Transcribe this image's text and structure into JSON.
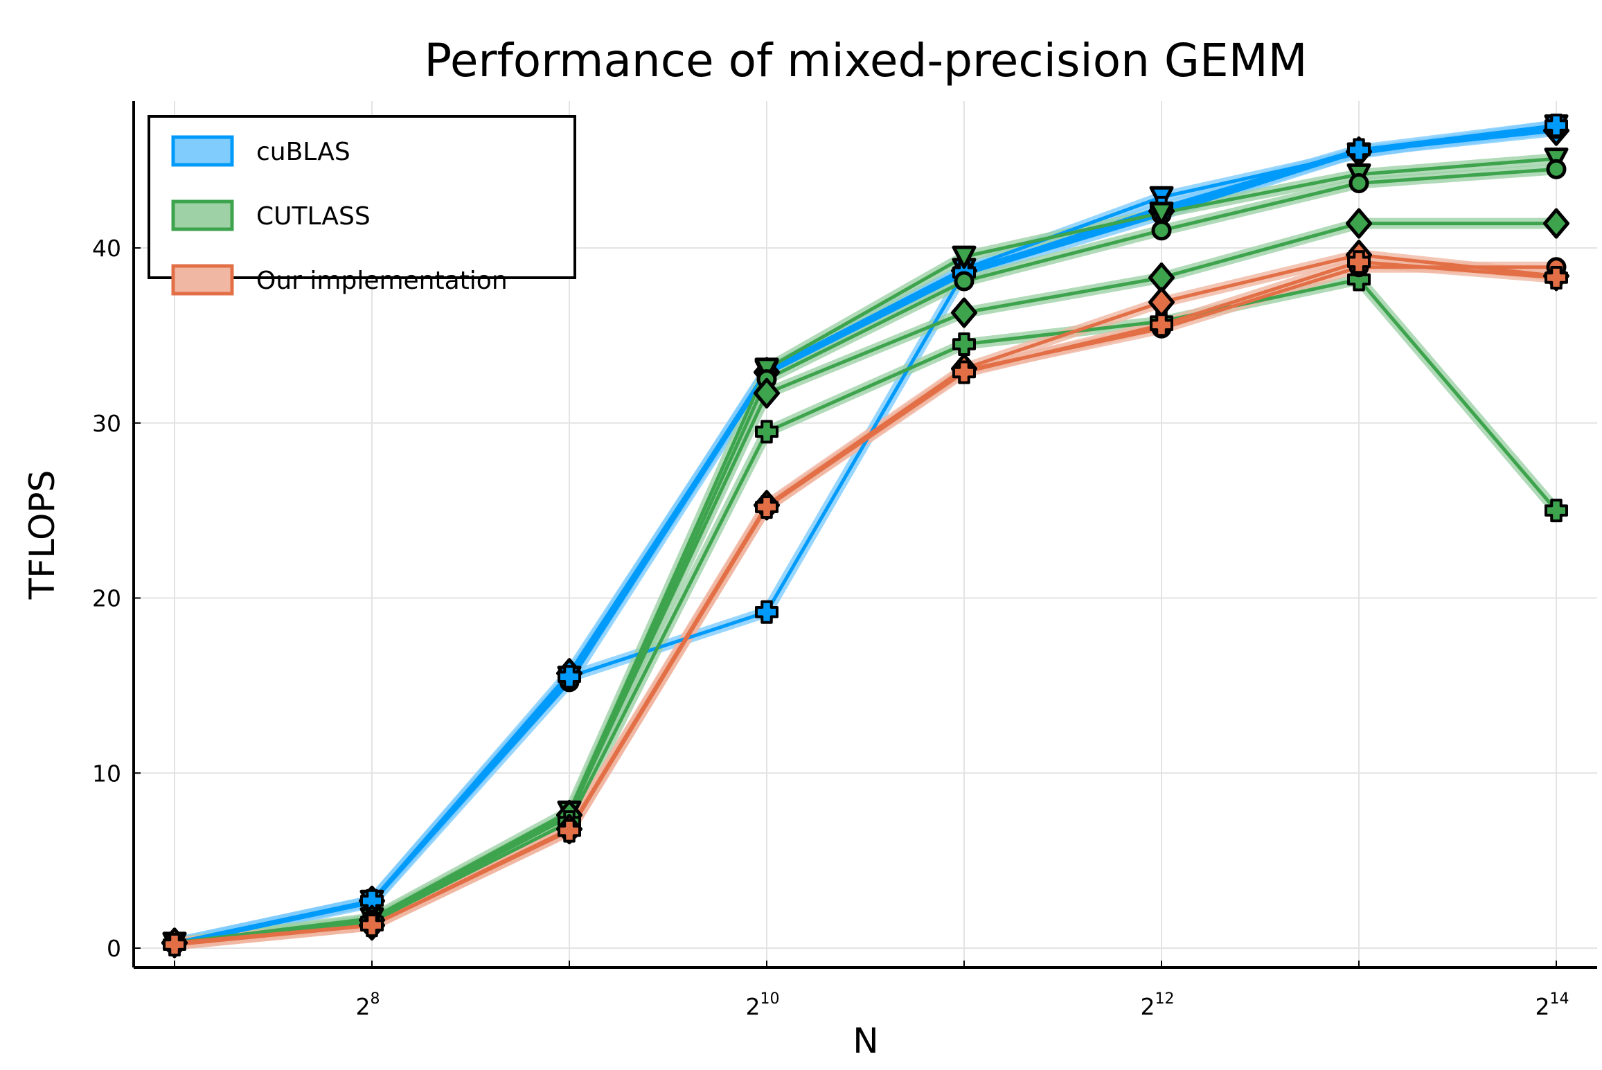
{
  "chart_data": {
    "type": "line",
    "title": "Performance of mixed-precision GEMM",
    "xlabel": "N",
    "ylabel": "TFLOPS",
    "x_scale": "log2",
    "x": [
      128,
      256,
      512,
      1024,
      2048,
      4096,
      8192,
      16384
    ],
    "x_ticks": [
      {
        "base": "2",
        "exp": "8",
        "value": 256
      },
      {
        "base": "2",
        "exp": "10",
        "value": 1024
      },
      {
        "base": "2",
        "exp": "12",
        "value": 4096
      },
      {
        "base": "2",
        "exp": "14",
        "value": 16384
      }
    ],
    "y_ticks": [
      "0",
      "10",
      "20",
      "30",
      "40"
    ],
    "ylim": [
      -1.2,
      48.3
    ],
    "grid": true,
    "legend_position": "top-left",
    "groups": [
      {
        "name": "cuBLAS",
        "color": "#009AFA",
        "fill": "#80CCFC"
      },
      {
        "name": "CUTLASS",
        "color": "#3DA44D",
        "fill": "#9ED1A6"
      },
      {
        "name": "Our implementation",
        "color": "#E26F46",
        "fill": "#F0B7A2"
      }
    ],
    "series": [
      {
        "group": 0,
        "marker": "diamond",
        "values": [
          0.3,
          2.7,
          15.7,
          32.9,
          38.7,
          42.1,
          45.5,
          46.7
        ]
      },
      {
        "group": 0,
        "marker": "circle",
        "values": [
          0.2,
          2.6,
          15.2,
          32.8,
          38.5,
          41.9,
          45.5,
          46.8
        ]
      },
      {
        "group": 0,
        "marker": "triangle-down",
        "values": [
          0.3,
          2.7,
          15.5,
          33.0,
          38.8,
          42.9,
          45.4,
          47.0
        ]
      },
      {
        "group": 0,
        "marker": "plus",
        "values": [
          0.2,
          2.7,
          15.5,
          19.2,
          38.6,
          42.3,
          45.6,
          47.0
        ]
      },
      {
        "group": 1,
        "marker": "triangle-down",
        "values": [
          0.3,
          1.7,
          7.8,
          33.1,
          39.5,
          42.0,
          44.2,
          45.1
        ]
      },
      {
        "group": 1,
        "marker": "circle",
        "values": [
          0.2,
          1.6,
          7.5,
          32.5,
          38.1,
          41.0,
          43.7,
          44.5
        ]
      },
      {
        "group": 1,
        "marker": "diamond",
        "values": [
          0.3,
          1.6,
          7.6,
          31.7,
          36.3,
          38.3,
          41.4,
          41.4
        ]
      },
      {
        "group": 1,
        "marker": "plus",
        "values": [
          0.2,
          1.5,
          7.2,
          29.5,
          34.5,
          35.8,
          38.2,
          25.0
        ]
      },
      {
        "group": 2,
        "marker": "diamond",
        "values": [
          0.3,
          1.3,
          6.8,
          25.3,
          33.1,
          36.9,
          39.6,
          38.4
        ]
      },
      {
        "group": 2,
        "marker": "circle",
        "values": [
          0.2,
          1.3,
          6.7,
          25.2,
          33.0,
          35.4,
          38.9,
          38.9
        ]
      },
      {
        "group": 2,
        "marker": "plus",
        "values": [
          0.2,
          1.3,
          6.7,
          25.2,
          32.9,
          35.6,
          39.2,
          38.3
        ]
      }
    ]
  }
}
